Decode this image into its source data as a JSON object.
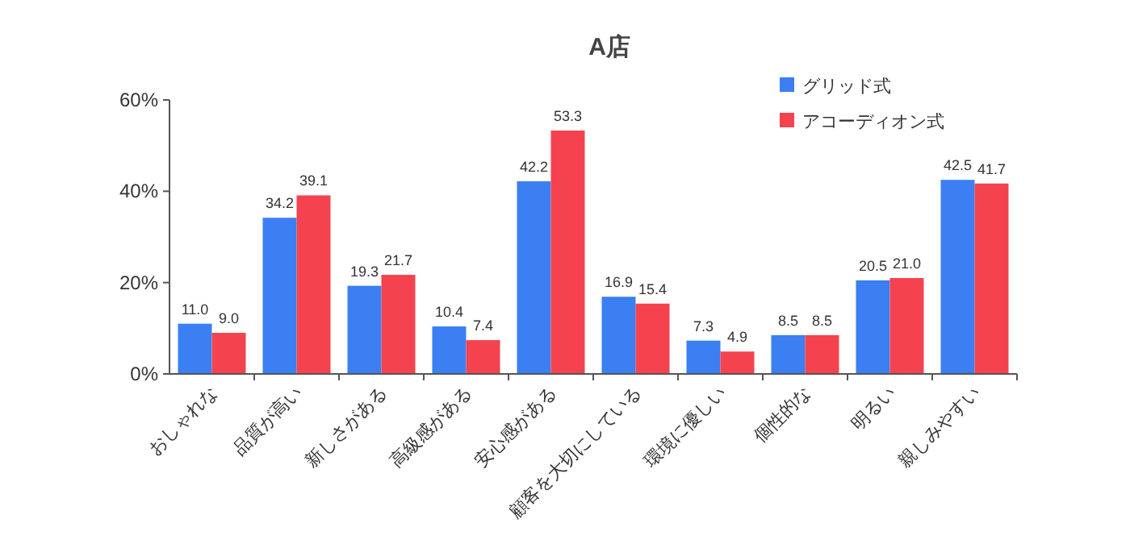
{
  "chart_data": {
    "type": "bar",
    "title": "A店",
    "categories": [
      "おしゃれな",
      "品質が高い",
      "新しさがある",
      "高級感がある",
      "安心感がある",
      "顧客を大切にしている",
      "環境に優しい",
      "個性的な",
      "明るい",
      "親しみやすい"
    ],
    "series": [
      {
        "name": "グリッド式",
        "color": "#3b7ff2",
        "values": [
          11.0,
          34.2,
          19.3,
          10.4,
          42.2,
          16.9,
          7.3,
          8.5,
          20.5,
          42.5
        ],
        "value_labels": [
          "11.0",
          "34.2",
          "19.3",
          "10.4",
          "42.2",
          "16.9",
          "7.3",
          "8.5",
          "20.5",
          "42.5"
        ]
      },
      {
        "name": "アコーディオン式",
        "color": "#f4434f",
        "values": [
          9.0,
          39.1,
          21.7,
          7.4,
          53.3,
          15.4,
          4.9,
          8.5,
          21.0,
          41.7
        ],
        "value_labels": [
          "9.0",
          "39.1",
          "21.7",
          "7.4",
          "53.3",
          "15.4",
          "4.9",
          "8.5",
          "21.0",
          "41.7"
        ]
      }
    ],
    "ylim": [
      0,
      60
    ],
    "yticks": [
      {
        "value": 0,
        "label": "0%"
      },
      {
        "value": 20,
        "label": "20%"
      },
      {
        "value": 40,
        "label": "40%"
      },
      {
        "value": 60,
        "label": "60%"
      }
    ],
    "grid": false,
    "legend": "top right"
  }
}
